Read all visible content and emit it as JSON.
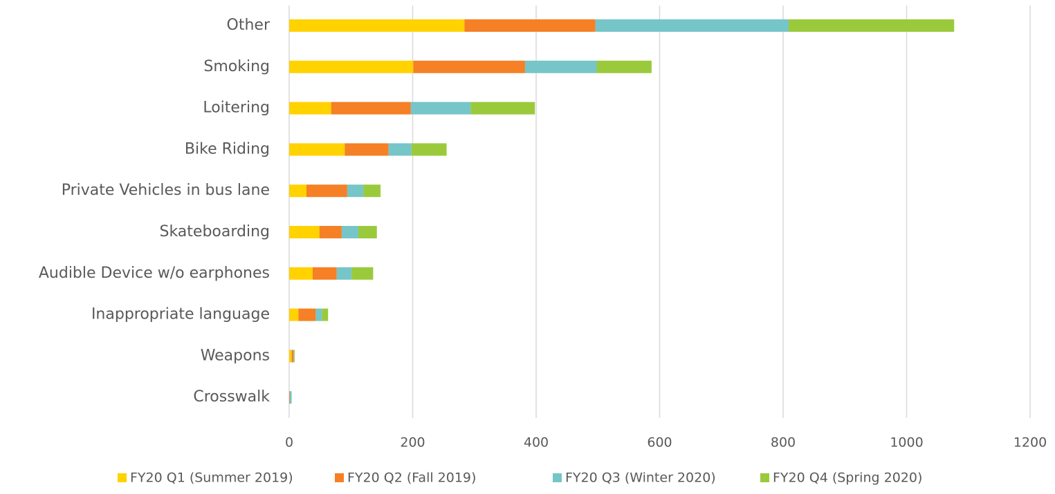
{
  "chart_data": {
    "type": "stacked-barh",
    "categories": [
      "Other",
      "Smoking",
      "Loitering",
      "Bike Riding",
      "Private Vehicles in bus lane",
      "Skateboarding",
      "Audible Device w/o earphones",
      "Inappropriate language",
      "Weapons",
      "Crosswalk"
    ],
    "series": [
      {
        "name": "FY20 Q1 (Summer 2019)",
        "color": "#ffd200",
        "values": [
          284,
          201,
          68,
          90,
          28,
          49,
          38,
          15,
          4,
          0
        ]
      },
      {
        "name": "FY20 Q2 (Fall 2019)",
        "color": "#f58025",
        "values": [
          212,
          181,
          129,
          71,
          66,
          36,
          39,
          28,
          3,
          1
        ]
      },
      {
        "name": "FY20 Q3 (Winter 2020)",
        "color": "#76c5c8",
        "values": [
          313,
          116,
          97,
          37,
          26,
          27,
          24,
          10,
          1,
          3
        ]
      },
      {
        "name": "FY20 Q4 (Spring 2020)",
        "color": "#9aca3c",
        "values": [
          268,
          89,
          104,
          57,
          28,
          30,
          35,
          10,
          1,
          0
        ]
      }
    ],
    "xlim": [
      0,
      1200
    ],
    "xticks": [
      0,
      200,
      400,
      600,
      800,
      1000,
      1200
    ],
    "grid": true,
    "legend": "bottom"
  }
}
